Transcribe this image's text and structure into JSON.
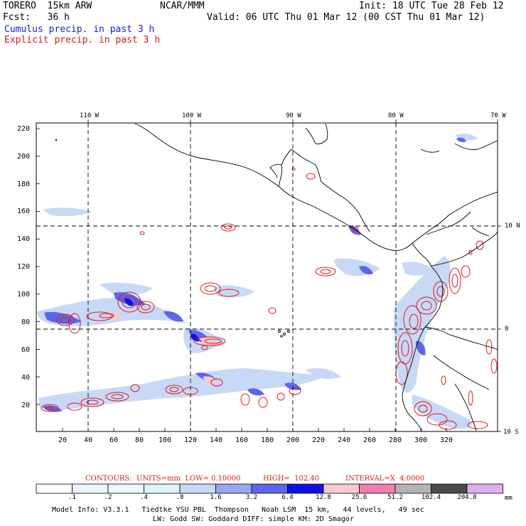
{
  "header": {
    "model": "TORERO  15km ARW",
    "org": "NCAR/MMM",
    "init": "Init: 18 UTC Tue 28 Feb 12",
    "fcst": "Fcst:   36 h",
    "valid": "Valid: 06 UTC Thu 01 Mar 12 (00 CST Thu 01 Mar 12)",
    "legend_cumulus": "Cumulus precip. in past 3 h",
    "legend_explicit": "Explicit precip. in past 3 h"
  },
  "map": {
    "top_lon_labels": [
      "110 W",
      "100 W",
      "90 W",
      "80 W",
      "70 W"
    ],
    "right_lat_labels": [
      "10 N",
      "0",
      "10 S"
    ],
    "y_ticks": [
      "220",
      "200",
      "180",
      "160",
      "140",
      "120",
      "100",
      "80",
      "60",
      "40",
      "20"
    ],
    "x_ticks": [
      "20",
      "40",
      "60",
      "80",
      "100",
      "120",
      "140",
      "160",
      "180",
      "200",
      "220",
      "240",
      "260",
      "280",
      "300",
      "320"
    ]
  },
  "contours_line": {
    "label": "CONTOURS:  UNITS=mm  LOW= 0.10000",
    "high": "HIGH=  102.40",
    "interval": "INTERVAL=X  4.0000"
  },
  "colorbar": {
    "values": [
      ".1",
      ".2",
      ".4",
      ".8",
      "1.6",
      "3.2",
      "6.4",
      "12.8",
      "25.6",
      "51.2",
      "102.4",
      "204.8"
    ],
    "unit": "mm",
    "colors": [
      "#ffffff",
      "#eef4ff",
      "#e8f8fb",
      "#dff4f6",
      "#c7d9f7",
      "#9aa7f2",
      "#5b66ec",
      "#1010e6",
      "#f8c9d0",
      "#f07fb0",
      "#b3b3b3",
      "#4a4a4a",
      "#dcb0f0"
    ]
  },
  "footer": {
    "line1": "Model Info: V3.3.1   Tiedtke YSU PBL  Thompson   Noah LSM  15 km,   44 levels,   49 sec",
    "line2": "LW: Godd SW: Goddard DIFF: simple KM: 2D Smagor"
  }
}
